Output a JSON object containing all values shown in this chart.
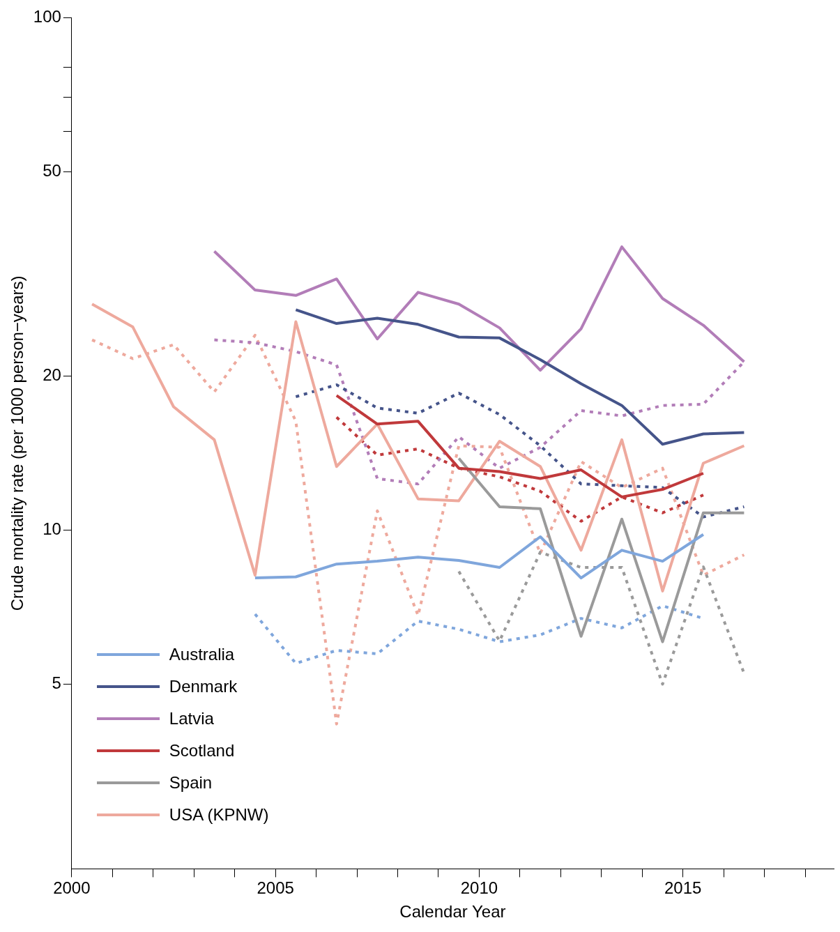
{
  "chart_data": {
    "type": "line",
    "xlabel": "Calendar Year",
    "ylabel": "Crude mortality rate (per 1000 person−years)",
    "xlim": [
      2000,
      2018.7
    ],
    "xticks": [
      2000,
      {
        "value": 2001,
        "label": null
      },
      {
        "value": 2002,
        "label": null
      },
      {
        "value": 2003,
        "label": null
      },
      {
        "value": 2004,
        "label": null
      },
      2005,
      {
        "value": 2006,
        "label": null
      },
      {
        "value": 2007,
        "label": null
      },
      {
        "value": 2008,
        "label": null
      },
      {
        "value": 2009,
        "label": null
      },
      2010,
      {
        "value": 2011,
        "label": null
      },
      {
        "value": 2012,
        "label": null
      },
      {
        "value": 2013,
        "label": null
      },
      {
        "value": 2014,
        "label": null
      },
      2015,
      {
        "value": 2016,
        "label": null
      },
      {
        "value": 2017,
        "label": null
      },
      {
        "value": 2018,
        "label": null
      }
    ],
    "ylim": [
      2.18,
      100
    ],
    "yticks": [
      5,
      10,
      20,
      50,
      {
        "value": 60,
        "label": null
      },
      {
        "value": 70,
        "label": null
      },
      {
        "value": 80,
        "label": null
      },
      100
    ],
    "log": "y",
    "grid": false,
    "legend": "bottom left",
    "marker": "none",
    "series": [
      {
        "name": "Australia",
        "color": "#7fa6dc",
        "x": [
          2004.5,
          2005.5,
          2006.5,
          2007.5,
          2008.5,
          2009.5,
          2010.5,
          2011.5,
          2012.5,
          2013.5,
          2014.5,
          2015.5
        ],
        "values": [
          8.06,
          8.1,
          8.58,
          8.69,
          8.85,
          8.72,
          8.45,
          9.7,
          8.06,
          9.13,
          8.69,
          9.8
        ]
      },
      {
        "name": "Denmark",
        "color": "#45548a",
        "x": [
          2005.5,
          2006.5,
          2007.5,
          2008.5,
          2009.5,
          2010.5,
          2011.5,
          2012.5,
          2013.5,
          2014.5,
          2015.5,
          2016.5
        ],
        "values": [
          26.9,
          25.3,
          25.9,
          25.2,
          23.8,
          23.7,
          21.5,
          19.3,
          17.5,
          14.7,
          15.4,
          15.5
        ]
      },
      {
        "name": "Latvia",
        "color": "#b27db8",
        "x": [
          2003.5,
          2004.5,
          2005.5,
          2006.5,
          2007.5,
          2008.5,
          2009.5,
          2010.5,
          2011.5,
          2012.5,
          2013.5,
          2014.5,
          2015.5,
          2016.5
        ],
        "values": [
          35,
          29.4,
          28.7,
          30.9,
          23.6,
          29.1,
          27.6,
          24.8,
          20.5,
          24.7,
          35.7,
          28.3,
          25.1,
          21.3
        ]
      },
      {
        "name": "Scotland",
        "color": "#c0393b",
        "x": [
          2006.5,
          2007.5,
          2008.5,
          2009.5,
          2010.5,
          2011.5,
          2012.5,
          2013.5,
          2014.5,
          2015.5
        ],
        "values": [
          18.3,
          16.1,
          16.3,
          13.2,
          13.0,
          12.6,
          13.1,
          11.6,
          12.0,
          12.9
        ]
      },
      {
        "name": "Spain",
        "color": "#9a9a9a",
        "x": [
          2009.5,
          2010.5,
          2011.5,
          2012.5,
          2013.5,
          2014.5,
          2015.5,
          2016.5
        ],
        "values": [
          13.8,
          11.1,
          11.0,
          6.2,
          10.5,
          6.05,
          10.8,
          10.8
        ]
      },
      {
        "name": "USA (KPNW)",
        "color": "#eea99d",
        "x": [
          2000.5,
          2001.5,
          2002.5,
          2003.5,
          2004.5,
          2005.5,
          2006.5,
          2007.5,
          2008.5,
          2009.5,
          2010.5,
          2011.5,
          2012.5,
          2013.5,
          2014.5,
          2015.5,
          2016.5
        ],
        "values": [
          27.6,
          24.9,
          17.4,
          15.0,
          8.16,
          25.5,
          13.3,
          16.1,
          11.5,
          11.4,
          14.9,
          13.3,
          9.13,
          15.0,
          7.6,
          13.5,
          14.6
        ]
      },
      {
        "color": "#7fa6dc",
        "line_style": "dotted",
        "x": [
          2004.5,
          2005.5,
          2006.5,
          2007.5,
          2008.5,
          2009.5,
          2010.5,
          2011.5,
          2012.5,
          2013.5,
          2014.5,
          2015.5
        ],
        "values": [
          6.85,
          5.49,
          5.82,
          5.73,
          6.64,
          6.4,
          6.05,
          6.24,
          6.72,
          6.44,
          7.11,
          6.72
        ]
      },
      {
        "color": "#45548a",
        "line_style": "dotted",
        "x": [
          2005.5,
          2006.5,
          2007.5,
          2008.5,
          2009.5,
          2010.5,
          2011.5,
          2012.5,
          2013.5,
          2014.5,
          2015.5,
          2016.5
        ],
        "values": [
          18.2,
          19.2,
          17.3,
          16.9,
          18.5,
          16.8,
          14.6,
          12.3,
          12.2,
          12.1,
          10.6,
          11.1
        ]
      },
      {
        "color": "#b27db8",
        "line_style": "dotted",
        "x": [
          2003.5,
          2004.5,
          2005.5,
          2006.5,
          2007.5,
          2008.5,
          2009.5,
          2010.5,
          2011.5,
          2012.5,
          2013.5,
          2014.5,
          2015.5,
          2016.5
        ],
        "values": [
          23.5,
          23.2,
          22.3,
          21.0,
          12.6,
          12.3,
          15.2,
          13.2,
          14.5,
          17.1,
          16.7,
          17.5,
          17.6,
          21.3
        ]
      },
      {
        "color": "#c0393b",
        "line_style": "dotted",
        "x": [
          2006.5,
          2007.5,
          2008.5,
          2009.5,
          2010.5,
          2011.5,
          2012.5,
          2013.5,
          2014.5,
          2015.5
        ],
        "values": [
          16.6,
          14.0,
          14.4,
          13.2,
          12.7,
          11.9,
          10.4,
          11.6,
          10.8,
          11.7
        ]
      },
      {
        "color": "#9a9a9a",
        "line_style": "dotted",
        "x": [
          2009.5,
          2010.5,
          2011.5,
          2012.5,
          2013.5,
          2014.5,
          2015.5,
          2016.5
        ],
        "values": [
          8.3,
          6.07,
          9.05,
          8.45,
          8.45,
          5.0,
          8.47,
          5.25
        ]
      },
      {
        "color": "#eea99d",
        "line_style": "dotted",
        "x": [
          2000.5,
          2001.5,
          2002.5,
          2003.5,
          2004.5,
          2005.5,
          2006.5,
          2007.5,
          2008.5,
          2009.5,
          2010.5,
          2011.5,
          2012.5,
          2013.5,
          2014.5,
          2015.5,
          2016.5
        ],
        "values": [
          23.5,
          21.6,
          23.0,
          18.6,
          24.0,
          16.3,
          4.18,
          10.9,
          6.81,
          14.6,
          14.5,
          9.0,
          13.6,
          12.1,
          13.2,
          8.16,
          8.94
        ]
      }
    ]
  }
}
